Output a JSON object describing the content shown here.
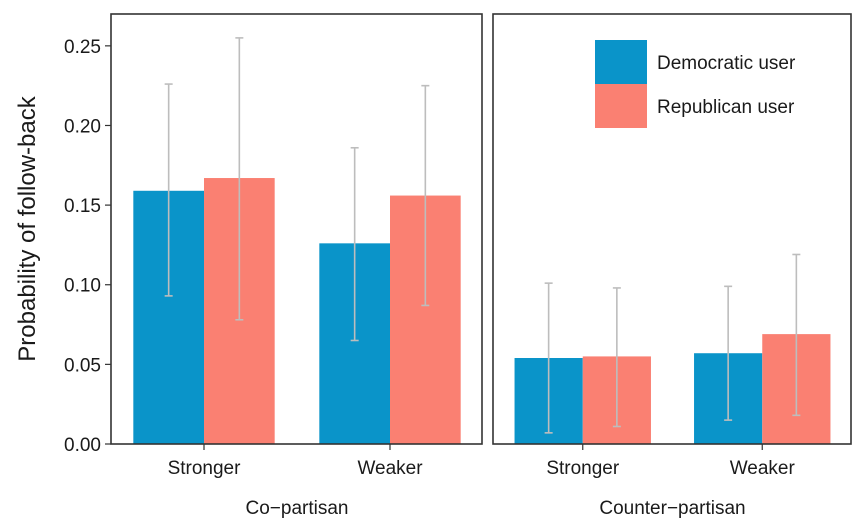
{
  "chart_data": {
    "type": "bar",
    "ylabel": "Probability of follow-back",
    "ylim": [
      0,
      0.27
    ],
    "y_ticks": [
      "0.00",
      "0.05",
      "0.10",
      "0.15",
      "0.20",
      "0.25"
    ],
    "categories": [
      "Stronger",
      "Weaker"
    ],
    "grid": false,
    "legend_position": "top-right",
    "colors": {
      "democratic": "#0a94c9",
      "republican": "#fa8072",
      "errorbar": "#bdbdbd"
    },
    "legend": [
      {
        "key": "democratic",
        "label": "Democratic user"
      },
      {
        "key": "republican",
        "label": "Republican user"
      }
    ],
    "facets": [
      {
        "label": "Co−partisan",
        "series": [
          {
            "name": "Democratic user",
            "key": "democratic",
            "values": [
              0.159,
              0.126
            ],
            "lower": [
              0.093,
              0.065
            ],
            "upper": [
              0.226,
              0.186
            ]
          },
          {
            "name": "Republican user",
            "key": "republican",
            "values": [
              0.167,
              0.156
            ],
            "lower": [
              0.078,
              0.087
            ],
            "upper": [
              0.255,
              0.225
            ]
          }
        ]
      },
      {
        "label": "Counter−partisan",
        "series": [
          {
            "name": "Democratic user",
            "key": "democratic",
            "values": [
              0.054,
              0.057
            ],
            "lower": [
              0.007,
              0.015
            ],
            "upper": [
              0.101,
              0.099
            ]
          },
          {
            "name": "Republican user",
            "key": "republican",
            "values": [
              0.055,
              0.069
            ],
            "lower": [
              0.011,
              0.018
            ],
            "upper": [
              0.098,
              0.119
            ]
          }
        ]
      }
    ]
  }
}
